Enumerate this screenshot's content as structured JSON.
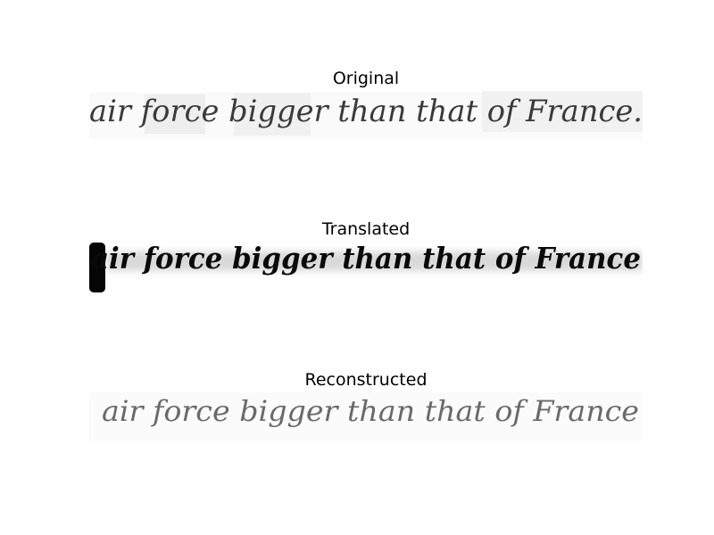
{
  "figure": {
    "panels": [
      {
        "title": "Original",
        "handwriting_text": "air force bigger than that of France.",
        "ink_color": "#3a3a3a",
        "background_tone": "#ececec"
      },
      {
        "title": "Translated",
        "handwriting_text": "air force bigger than that of France",
        "ink_color": "#0a0a0a",
        "background_tone": "#d6d6d6"
      },
      {
        "title": "Reconstructed",
        "handwriting_text": "air force bigger than that of France",
        "ink_color": "#6a6a6a",
        "background_tone": "#f6f6f6"
      }
    ]
  }
}
